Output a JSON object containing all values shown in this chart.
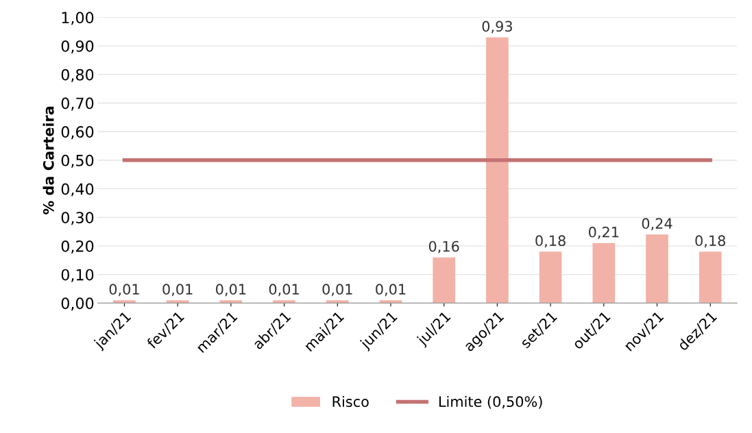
{
  "chart_data": {
    "type": "bar",
    "ylabel": "% da Carteira",
    "categories": [
      "jan/21",
      "fev/21",
      "mar/21",
      "abr/21",
      "mai/21",
      "jun/21",
      "jul/21",
      "ago/21",
      "set/21",
      "out/21",
      "nov/21",
      "dez/21"
    ],
    "series": [
      {
        "name": "Risco",
        "color": "#f2b2a8",
        "values": [
          0.01,
          0.01,
          0.01,
          0.01,
          0.01,
          0.01,
          0.16,
          0.93,
          0.18,
          0.21,
          0.24,
          0.18
        ],
        "value_labels": [
          "0,01",
          "0,01",
          "0,01",
          "0,01",
          "0,01",
          "0,01",
          "0,16",
          "0,93",
          "0,18",
          "0,21",
          "0,24",
          "0,18"
        ]
      },
      {
        "name": "Limite (0,50%)",
        "type": "line",
        "color": "#c47272",
        "values": [
          0.5,
          0.5,
          0.5,
          0.5,
          0.5,
          0.5,
          0.5,
          0.5,
          0.5,
          0.5,
          0.5,
          0.5
        ]
      }
    ],
    "ylim": [
      0,
      1
    ],
    "yticks": [
      {
        "value": 0,
        "label": "0,00"
      },
      {
        "value": 0.1,
        "label": "0,10"
      },
      {
        "value": 0.2,
        "label": "0,20"
      },
      {
        "value": 0.3,
        "label": "0,30"
      },
      {
        "value": 0.4,
        "label": "0,40"
      },
      {
        "value": 0.5,
        "label": "0,50"
      },
      {
        "value": 0.6,
        "label": "0,60"
      },
      {
        "value": 0.7,
        "label": "0,70"
      },
      {
        "value": 0.8,
        "label": "0,80"
      },
      {
        "value": 0.9,
        "label": "0,90"
      },
      {
        "value": 1,
        "label": "1,00"
      }
    ],
    "grid": "y",
    "legend": "bottom",
    "marker": "none",
    "line_style": "solid"
  }
}
